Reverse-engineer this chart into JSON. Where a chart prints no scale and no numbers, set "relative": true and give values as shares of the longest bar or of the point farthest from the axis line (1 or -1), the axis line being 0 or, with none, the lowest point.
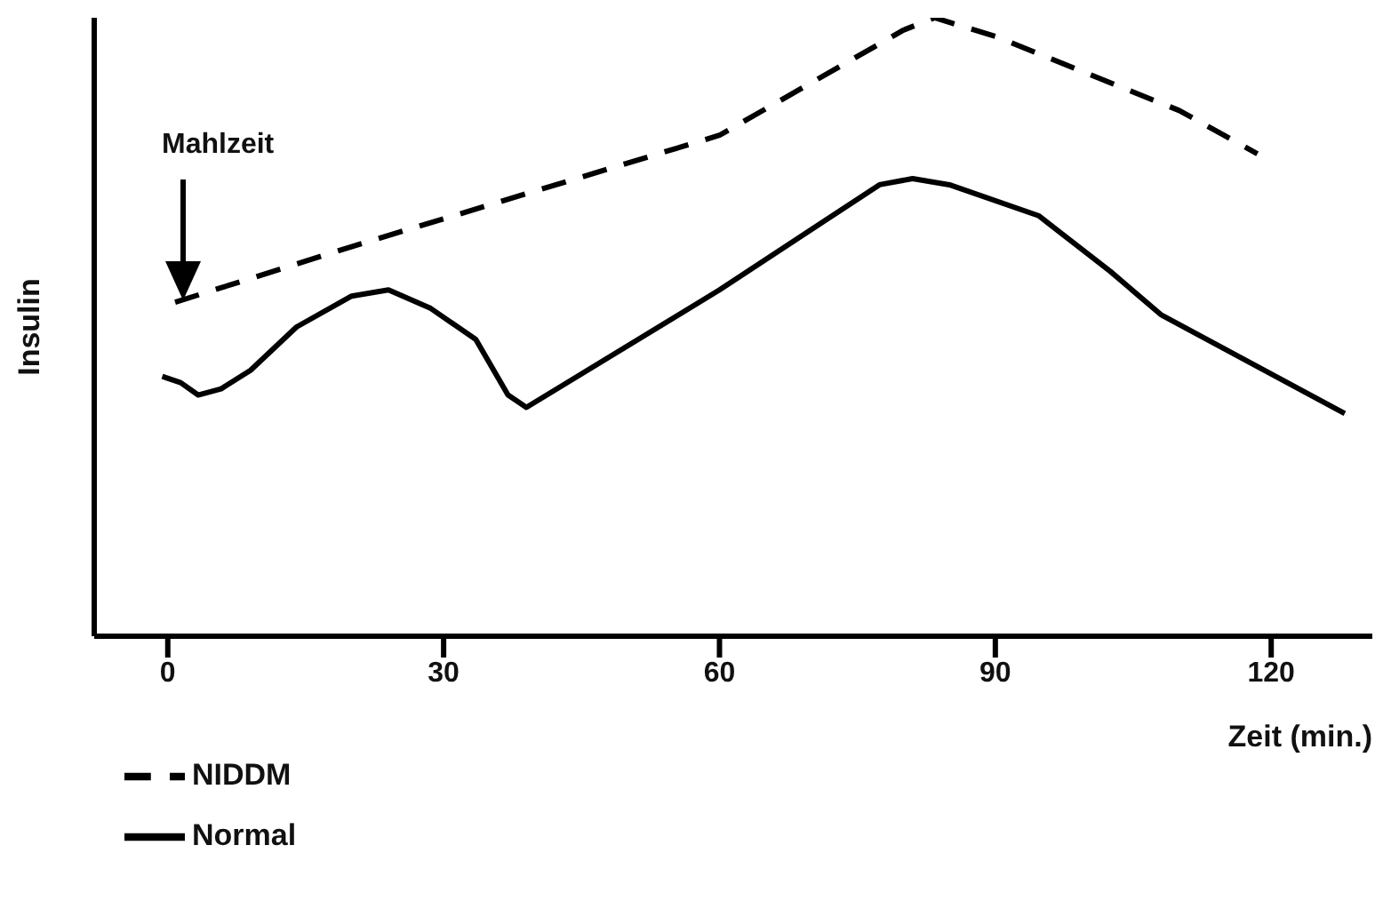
{
  "chart_data": {
    "type": "line",
    "relative": true,
    "xlabel": "Zeit (min.)",
    "ylabel": "Insulin",
    "xlim": [
      -8,
      131
    ],
    "xticks": [
      0,
      30,
      60,
      90,
      120
    ],
    "legend": "bottom left",
    "marker": "none",
    "annotations": [
      "Mahlzeit"
    ],
    "series": [
      {
        "name": "NIDDM",
        "color": "#000000",
        "line_style": "dashed",
        "x": [
          0.8,
          20,
          40,
          60,
          80,
          83.4,
          90,
          100,
          110,
          118.5
        ],
        "values": [
          0.54,
          0.63,
          0.72,
          0.81,
          0.98,
          1.0,
          0.97,
          0.91,
          0.85,
          0.78
        ]
      },
      {
        "name": "Normal",
        "color": "#000000",
        "line_style": "solid",
        "x": [
          -0.6,
          1.4,
          3.3,
          5.8,
          9,
          14,
          20,
          24,
          28.6,
          33.5,
          37,
          39,
          60,
          77.4,
          81,
          85,
          94.7,
          102.5,
          108,
          128
        ],
        "values": [
          0.42,
          0.41,
          0.39,
          0.4,
          0.43,
          0.5,
          0.55,
          0.56,
          0.53,
          0.48,
          0.39,
          0.37,
          0.56,
          0.73,
          0.74,
          0.73,
          0.68,
          0.59,
          0.52,
          0.36
        ]
      }
    ]
  }
}
